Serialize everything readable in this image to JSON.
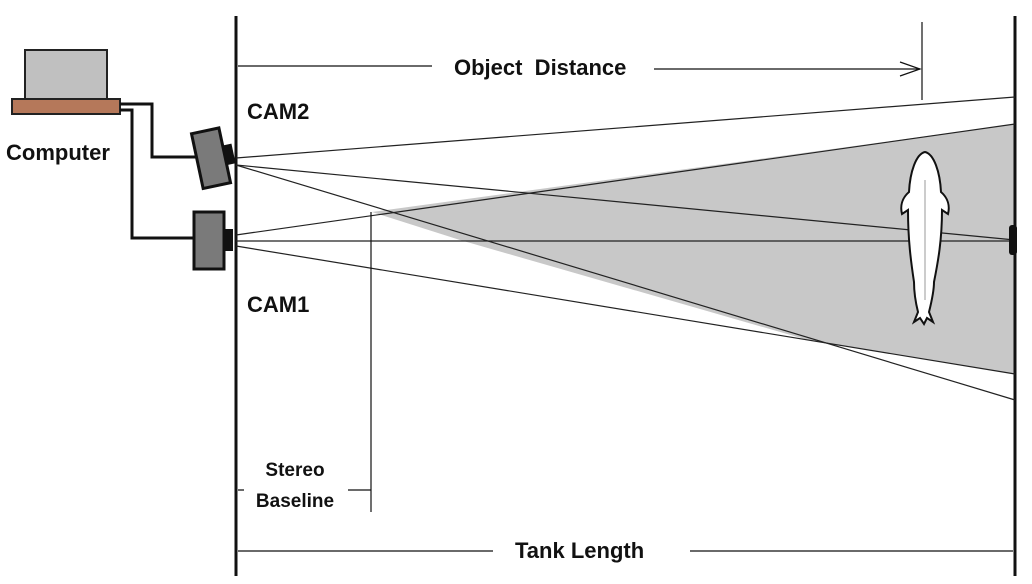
{
  "labels": {
    "computer": "Computer",
    "cam2": "CAM2",
    "cam1": "CAM1",
    "object_distance": "Object  Distance",
    "stereo_line1": "Stereo",
    "stereo_line2": "Baseline",
    "tank_length": "Tank Length"
  },
  "colors": {
    "overlap_fill": "#c8c8c8",
    "line": "#111111",
    "computer_screen": "#c0c0c0",
    "computer_base": "#b5785a",
    "camera_body": "#7a7a7a"
  },
  "icons": {
    "computer": "laptop-computer-icon",
    "cam1": "camera-icon",
    "cam2": "camera-icon",
    "fish": "fish-icon"
  }
}
